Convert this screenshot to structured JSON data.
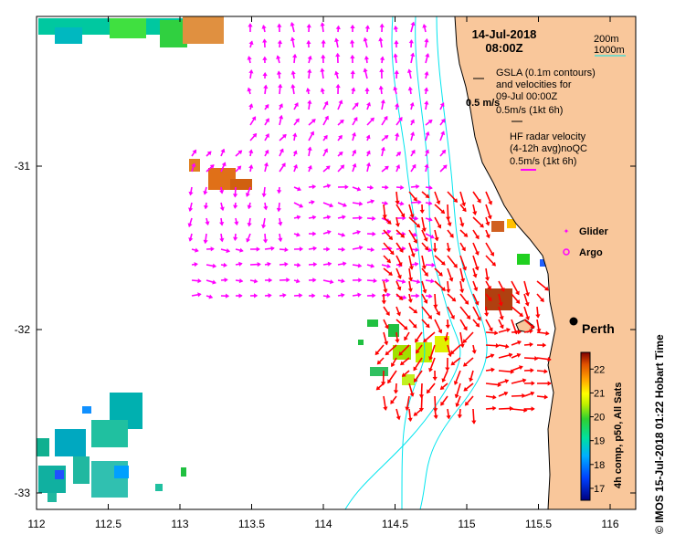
{
  "header": {
    "date": "14-Jul-2018",
    "time": "08:00Z"
  },
  "scale_legend": {
    "depth_200": "200m",
    "depth_1000": "1000m"
  },
  "legend": {
    "gsla_line1": "GSLA (0.1m contours)",
    "gsla_line2": "and velocities for",
    "gsla_date": "09-Jul 00:00Z",
    "gsla_scale_label": "0.5 m/s",
    "gsla_scale": "0.5m/s (1kt 6h)",
    "hf_line1": "HF radar velocity",
    "hf_line2": "(4-12h avg)noQC",
    "hf_scale": "0.5m/s (1kt 6h)",
    "glider": "Glider",
    "argo": "Argo"
  },
  "places": {
    "perth": "Perth"
  },
  "axes": {
    "x_ticks": [
      "112",
      "112.5",
      "113",
      "113.5",
      "114",
      "114.5",
      "115",
      "115.5",
      "116"
    ],
    "y_ticks": [
      "-31",
      "-32",
      "-33"
    ]
  },
  "colorbar": {
    "ticks": [
      "17",
      "18",
      "19",
      "20",
      "21",
      "22"
    ],
    "label": "4h comp, p50, All Sats",
    "range": [
      16.5,
      22.7
    ]
  },
  "credit": "© IMOS 15-Jul-2018 01:22 Hobart Time",
  "colors": {
    "land": "#f9c79b",
    "gsla_arrows": "#ff00ff",
    "hf_arrows": "#ff0000",
    "isobaths": "#00e5ee",
    "glider": "#ff00ff",
    "argo": "#ff00ff"
  },
  "map_data": {
    "lon_range": [
      112,
      116.3
    ],
    "lat_range": [
      -33.1,
      -30.2
    ],
    "perth": {
      "lon": 115.86,
      "lat": -31.95
    }
  }
}
